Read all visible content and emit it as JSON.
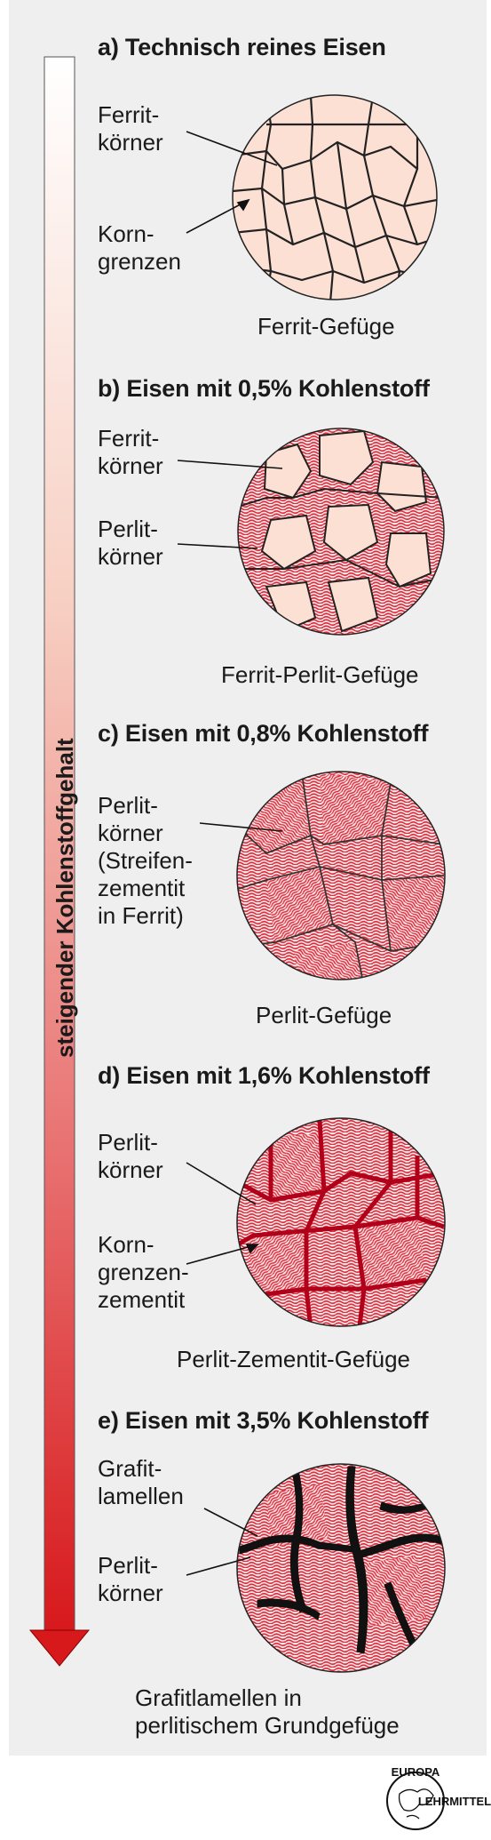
{
  "axis": {
    "label": "steigender Kohlenstoffgehalt",
    "gradient_top": "#ffffff",
    "gradient_bottom": "#d7191c"
  },
  "colors": {
    "ferrite": "#fce0d4",
    "pearlite": "#d63040",
    "cementite": "#b0001a",
    "graphite": "#111111"
  },
  "sections": [
    {
      "id": "a",
      "title": "a) Technisch reines Eisen",
      "labels": [
        "Ferrit-\nkörner",
        "Korn-\ngrenzen"
      ],
      "caption": "Ferrit-Gefüge"
    },
    {
      "id": "b",
      "title": "b) Eisen mit 0,5% Kohlenstoff",
      "labels": [
        "Ferrit-\nkörner",
        "Perlit-\nkörner"
      ],
      "caption": "Ferrit-Perlit-Gefüge"
    },
    {
      "id": "c",
      "title": "c) Eisen mit 0,8% Kohlenstoff",
      "labels": [
        "Perlit-\nkörner\n(Streifen-\nzementit\nin Ferrit)"
      ],
      "caption": "Perlit-Gefüge"
    },
    {
      "id": "d",
      "title": "d) Eisen mit 1,6% Kohlenstoff",
      "labels": [
        "Perlit-\nkörner",
        "Korn-\ngrenzen-\nzementit"
      ],
      "caption": "Perlit-Zementit-Gefüge"
    },
    {
      "id": "e",
      "title": "e) Eisen mit 3,5% Kohlenstoff",
      "labels": [
        "Grafit-\nlamellen",
        "Perlit-\nkörner"
      ],
      "caption": "Grafitlamellen in\nperlitischem Grundgefüge"
    }
  ],
  "logo": {
    "top_text": "EUROPA",
    "bottom_text": "LEHRMITTEL"
  }
}
